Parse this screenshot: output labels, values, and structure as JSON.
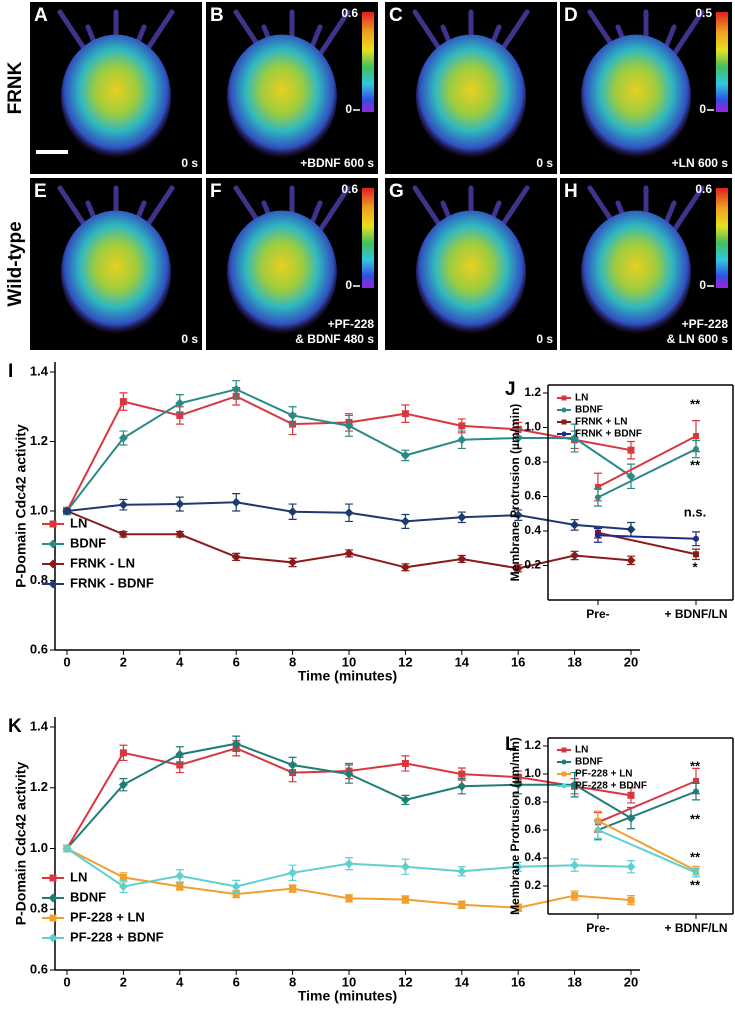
{
  "image_panels": {
    "row_labels": [
      "FRNK",
      "Wild-type"
    ],
    "panels": [
      {
        "letter": "A",
        "caption": [
          "0 s"
        ]
      },
      {
        "letter": "B",
        "caption": [
          "+BDNF 600 s"
        ],
        "scale": [
          "0.6",
          "0"
        ]
      },
      {
        "letter": "C",
        "caption": [
          "0 s"
        ]
      },
      {
        "letter": "D",
        "caption": [
          "+LN 600 s"
        ],
        "scale": [
          "0.5",
          "0"
        ]
      },
      {
        "letter": "E",
        "caption": [
          "0 s"
        ]
      },
      {
        "letter": "F",
        "caption": [
          "+PF-228",
          "& BDNF 480 s"
        ],
        "scale": [
          "0.6",
          "0"
        ]
      },
      {
        "letter": "G",
        "caption": [
          "0 s"
        ]
      },
      {
        "letter": "H",
        "caption": [
          "+PF-228",
          "& LN 600 s"
        ],
        "scale": [
          "0.6",
          "0"
        ]
      }
    ]
  },
  "chart_data": [
    {
      "type": "line",
      "panel_label": "I",
      "ylabel": "P-Domain Cdc42 activity",
      "xlabel": "Time (minutes)",
      "frame": "open",
      "legend": "lower left",
      "x": [
        0,
        2,
        4,
        6,
        8,
        10,
        12,
        14,
        16,
        18,
        20
      ],
      "xlim": [
        0,
        20
      ],
      "xticks": [
        0,
        2,
        4,
        6,
        8,
        10,
        12,
        14,
        16,
        18,
        20
      ],
      "ylim": [
        0.6,
        1.4
      ],
      "yticks": [
        0.6,
        0.8,
        {
          "value": 1,
          "label": "1.0"
        },
        1.2,
        1.4
      ],
      "series": [
        {
          "name": "LN",
          "color": "#d9373f",
          "marker": "square",
          "values": [
            1.0,
            1.315,
            1.275,
            1.33,
            1.25,
            1.255,
            1.28,
            1.245,
            1.235,
            1.205,
            1.175
          ],
          "errors": [
            0.01,
            0.025,
            0.025,
            0.025,
            0.03,
            0.025,
            0.025,
            0.02,
            0.02,
            0.025,
            0.025
          ]
        },
        {
          "name": "BDNF",
          "color": "#2a8a86",
          "marker": "diamond",
          "values": [
            1.0,
            1.21,
            1.31,
            1.35,
            1.275,
            1.245,
            1.16,
            1.205,
            1.21,
            1.21,
            1.1
          ],
          "errors": [
            0.01,
            0.02,
            0.025,
            0.025,
            0.025,
            0.03,
            0.015,
            0.025,
            0.03,
            0.04,
            0.035
          ]
        },
        {
          "name": "FRNK - LN",
          "color": "#8b1a1a",
          "marker": "diamond",
          "values": [
            1.0,
            0.933,
            0.933,
            0.868,
            0.852,
            0.878,
            0.838,
            0.862,
            0.835,
            0.872,
            0.858
          ],
          "errors": [
            0.005,
            0.008,
            0.008,
            0.01,
            0.012,
            0.01,
            0.01,
            0.01,
            0.01,
            0.012,
            0.012
          ]
        },
        {
          "name": "FRNK - BDNF",
          "color": "#1e3a6e",
          "marker": "diamond",
          "values": [
            1.0,
            1.018,
            1.02,
            1.025,
            0.998,
            0.995,
            0.97,
            0.982,
            0.988,
            0.96,
            0.947
          ],
          "errors": [
            0.005,
            0.015,
            0.02,
            0.025,
            0.022,
            0.025,
            0.02,
            0.015,
            0.015,
            0.015,
            0.02
          ]
        }
      ]
    },
    {
      "type": "line",
      "panel_label": "J",
      "ylabel": "Membrane Protrusion (µm/min)",
      "frame": "box",
      "legend": "upper left",
      "categories": [
        "Pre-",
        "+ BDNF/LN"
      ],
      "ylim": [
        0,
        1.2
      ],
      "yticks": [
        0.2,
        0.4,
        0.6,
        0.8,
        {
          "value": 1,
          "label": "1.0"
        },
        1.2
      ],
      "annotations": [
        "**",
        "**",
        "n.s.",
        "*"
      ],
      "series": [
        {
          "name": "LN",
          "color": "#d9373f",
          "marker": "square",
          "values": [
            0.655,
            0.95
          ],
          "errors": [
            0.08,
            0.09
          ]
        },
        {
          "name": "BDNF",
          "color": "#2a8a86",
          "marker": "circle",
          "values": [
            0.595,
            0.875
          ],
          "errors": [
            0.05,
            0.05
          ]
        },
        {
          "name": "FRNK + LN",
          "color": "#8b1a1a",
          "marker": "square",
          "values": [
            0.39,
            0.265
          ],
          "errors": [
            0.03,
            0.03
          ]
        },
        {
          "name": "FRNK + BDNF",
          "color": "#1e2a8e",
          "marker": "circle",
          "values": [
            0.375,
            0.355
          ],
          "errors": [
            0.04,
            0.04
          ]
        }
      ]
    },
    {
      "type": "line",
      "panel_label": "K",
      "ylabel": "P-Domain Cdc42 activity",
      "xlabel": "Time (minutes)",
      "frame": "open",
      "legend": "lower left",
      "x": [
        0,
        2,
        4,
        6,
        8,
        10,
        12,
        14,
        16,
        18,
        20
      ],
      "xlim": [
        0,
        20
      ],
      "xticks": [
        0,
        2,
        4,
        6,
        8,
        10,
        12,
        14,
        16,
        18,
        20
      ],
      "ylim": [
        0.6,
        1.4
      ],
      "yticks": [
        0.6,
        0.8,
        {
          "value": 1,
          "label": "1.0"
        },
        1.2,
        1.4
      ],
      "series": [
        {
          "name": "LN",
          "color": "#d9373f",
          "marker": "square",
          "values": [
            1.0,
            1.315,
            1.275,
            1.33,
            1.25,
            1.255,
            1.28,
            1.245,
            1.235,
            1.205,
            1.175
          ],
          "errors": [
            0.01,
            0.025,
            0.025,
            0.025,
            0.03,
            0.025,
            0.025,
            0.02,
            0.02,
            0.025,
            0.025
          ]
        },
        {
          "name": "BDNF",
          "color": "#1f7d78",
          "marker": "diamond",
          "values": [
            1.0,
            1.21,
            1.31,
            1.345,
            1.275,
            1.245,
            1.16,
            1.205,
            1.21,
            1.21,
            1.1
          ],
          "errors": [
            0.01,
            0.02,
            0.025,
            0.025,
            0.025,
            0.03,
            0.015,
            0.025,
            0.03,
            0.04,
            0.035
          ]
        },
        {
          "name": "PF-228 + LN",
          "color": "#f0a030",
          "marker": "square",
          "values": [
            1.0,
            0.905,
            0.875,
            0.85,
            0.868,
            0.836,
            0.832,
            0.815,
            0.805,
            0.845,
            0.83
          ],
          "errors": [
            0.01,
            0.015,
            0.012,
            0.012,
            0.012,
            0.012,
            0.012,
            0.012,
            0.012,
            0.015,
            0.015
          ]
        },
        {
          "name": "PF-228 + BDNF",
          "color": "#5fd0d0",
          "marker": "diamond",
          "values": [
            1.0,
            0.875,
            0.91,
            0.875,
            0.92,
            0.95,
            0.94,
            0.925,
            0.94,
            0.945,
            0.94
          ],
          "errors": [
            0.01,
            0.02,
            0.02,
            0.02,
            0.025,
            0.02,
            0.025,
            0.015,
            0.015,
            0.02,
            0.02
          ]
        }
      ]
    },
    {
      "type": "line",
      "panel_label": "L",
      "ylabel": "Membrane Protrusion (µm/min)",
      "frame": "box",
      "legend": "upper left",
      "categories": [
        "Pre-",
        "+ BDNF/LN"
      ],
      "ylim": [
        0,
        1.2
      ],
      "yticks": [
        0.2,
        0.4,
        0.6,
        0.8,
        {
          "value": 1,
          "label": "1.0"
        },
        1.2
      ],
      "annotations": [
        "**",
        "**",
        "**",
        "**"
      ],
      "series": [
        {
          "name": "LN",
          "color": "#d9373f",
          "marker": "square",
          "values": [
            0.655,
            0.95
          ],
          "errors": [
            0.07,
            0.09
          ]
        },
        {
          "name": "BDNF",
          "color": "#1f7d78",
          "marker": "circle",
          "values": [
            0.6,
            0.875
          ],
          "errors": [
            0.07,
            0.06
          ]
        },
        {
          "name": "PF-228 + LN",
          "color": "#f0a030",
          "marker": "square",
          "values": [
            0.665,
            0.31
          ],
          "errors": [
            0.07,
            0.03
          ]
        },
        {
          "name": "PF-228 + BDNF",
          "color": "#5fd0d0",
          "marker": "circle",
          "values": [
            0.6,
            0.295
          ],
          "errors": [
            0.06,
            0.03
          ]
        }
      ]
    }
  ]
}
